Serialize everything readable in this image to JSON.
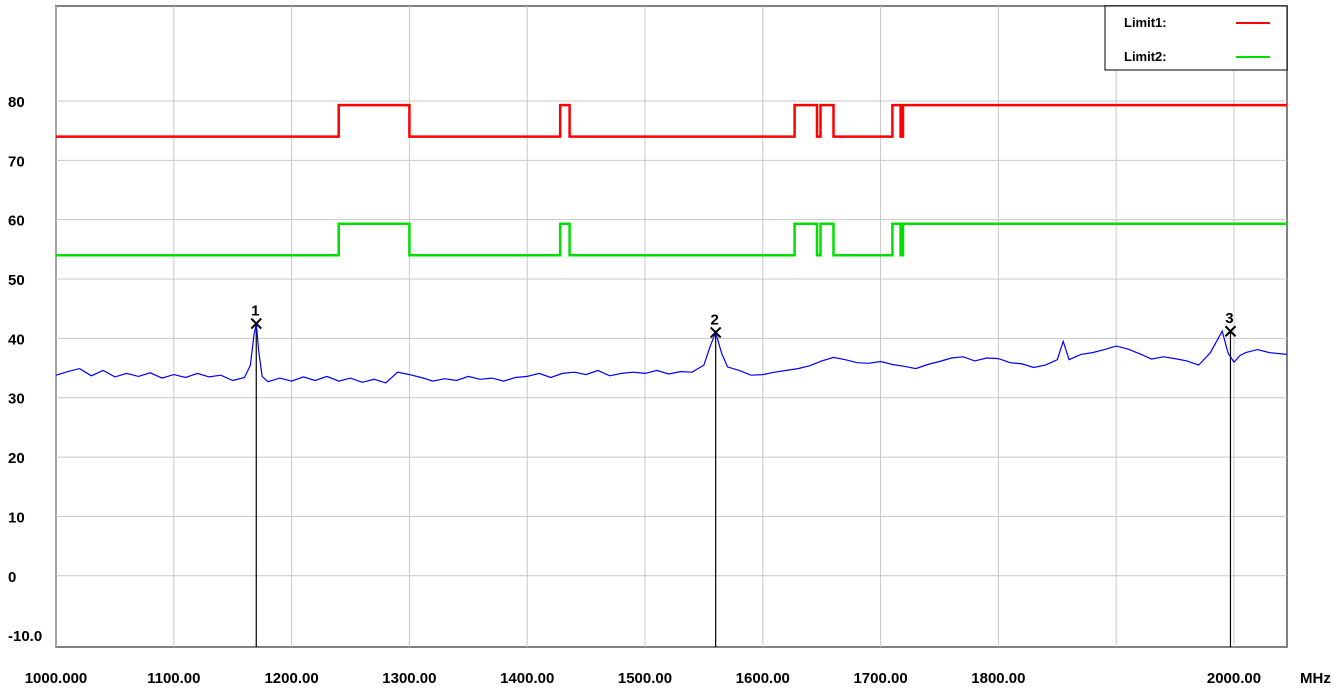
{
  "chart_data": {
    "type": "line",
    "xlabel": "",
    "ylabel": "",
    "x_unit": "MHz",
    "xlim": [
      1000,
      2045
    ],
    "ylim": [
      -12,
      96
    ],
    "grid": true,
    "legend_position": "top-right",
    "x_tick_values": [
      1000,
      1100,
      1200,
      1300,
      1400,
      1500,
      1600,
      1700,
      1800,
      2000
    ],
    "x_tick_labels": [
      "1000.000",
      "1100.00",
      "1200.00",
      "1300.00",
      "1400.00",
      "1500.00",
      "1600.00",
      "1700.00",
      "1800.00",
      "2000.00"
    ],
    "x_grid_values": [
      1000,
      1100,
      1200,
      1300,
      1400,
      1500,
      1600,
      1700,
      1800,
      1900,
      2000
    ],
    "y_tick_values": [
      -10,
      0,
      10,
      20,
      30,
      40,
      50,
      60,
      70,
      80
    ],
    "y_tick_labels": [
      "-10.0",
      "0",
      "10",
      "20",
      "30",
      "40",
      "50",
      "60",
      "70",
      "80"
    ],
    "y_grid_values": [
      0,
      10,
      20,
      30,
      40,
      50,
      60,
      70,
      80
    ],
    "series": [
      {
        "name": "Limit1:",
        "color": "#ff0000",
        "style": "step",
        "x": [
          1000,
          1240,
          1240,
          1300,
          1300,
          1428,
          1428,
          1436,
          1436,
          1627,
          1627,
          1646,
          1646,
          1649,
          1649,
          1660,
          1660,
          1710,
          1710,
          1717,
          1717,
          1719,
          1719,
          1722,
          1722,
          2045
        ],
        "y": [
          74,
          74,
          79.3,
          79.3,
          74,
          74,
          79.3,
          79.3,
          74,
          74,
          79.3,
          79.3,
          74,
          74,
          79.3,
          79.3,
          74,
          74,
          79.3,
          79.3,
          74,
          74,
          79.3,
          79.3,
          79.3,
          79.3
        ]
      },
      {
        "name": "Limit2:",
        "color": "#00e000",
        "style": "step",
        "x": [
          1000,
          1240,
          1240,
          1300,
          1300,
          1428,
          1428,
          1436,
          1436,
          1627,
          1627,
          1646,
          1646,
          1649,
          1649,
          1660,
          1660,
          1710,
          1710,
          1717,
          1717,
          1719,
          1719,
          1722,
          1722,
          2045
        ],
        "y": [
          54,
          54,
          59.3,
          59.3,
          54,
          54,
          59.3,
          59.3,
          54,
          54,
          59.3,
          59.3,
          54,
          54,
          59.3,
          59.3,
          54,
          54,
          59.3,
          59.3,
          54,
          54,
          59.3,
          59.3,
          59.3,
          59.3
        ]
      },
      {
        "name": "",
        "color": "#0000ff",
        "style": "line",
        "x": [
          1000,
          1010,
          1020,
          1030,
          1040,
          1050,
          1060,
          1070,
          1080,
          1090,
          1100,
          1110,
          1120,
          1130,
          1140,
          1150,
          1160,
          1165,
          1168,
          1170,
          1172,
          1175,
          1180,
          1190,
          1200,
          1210,
          1220,
          1230,
          1240,
          1250,
          1260,
          1270,
          1280,
          1290,
          1300,
          1310,
          1320,
          1330,
          1340,
          1350,
          1360,
          1370,
          1380,
          1390,
          1400,
          1410,
          1420,
          1430,
          1440,
          1450,
          1460,
          1470,
          1480,
          1490,
          1500,
          1510,
          1520,
          1530,
          1540,
          1550,
          1555,
          1560,
          1565,
          1570,
          1580,
          1590,
          1600,
          1610,
          1620,
          1630,
          1640,
          1650,
          1660,
          1670,
          1680,
          1690,
          1700,
          1710,
          1720,
          1730,
          1740,
          1750,
          1760,
          1770,
          1780,
          1790,
          1800,
          1810,
          1820,
          1830,
          1840,
          1850,
          1855,
          1860,
          1870,
          1880,
          1890,
          1900,
          1910,
          1920,
          1930,
          1940,
          1950,
          1960,
          1970,
          1980,
          1990,
          1995,
          2000,
          2005,
          2010,
          2020,
          2030,
          2045
        ],
        "y": [
          33.8,
          34.4,
          34.9,
          33.7,
          34.6,
          33.5,
          34.1,
          33.6,
          34.2,
          33.3,
          33.9,
          33.4,
          34.1,
          33.5,
          33.8,
          32.9,
          33.4,
          35.5,
          40.5,
          42.5,
          38,
          33.6,
          32.7,
          33.3,
          32.8,
          33.5,
          32.9,
          33.6,
          32.8,
          33.3,
          32.6,
          33.1,
          32.5,
          34.3,
          33.9,
          33.4,
          32.8,
          33.2,
          32.9,
          33.6,
          33.1,
          33.3,
          32.8,
          33.4,
          33.6,
          34.1,
          33.4,
          34.1,
          34.3,
          33.9,
          34.6,
          33.7,
          34.1,
          34.3,
          34.1,
          34.6,
          34.0,
          34.4,
          34.3,
          35.5,
          38.5,
          41,
          37.5,
          35.2,
          34.6,
          33.8,
          33.9,
          34.3,
          34.6,
          34.9,
          35.4,
          36.2,
          36.8,
          36.4,
          35.9,
          35.8,
          36.1,
          35.6,
          35.3,
          34.9,
          35.6,
          36.1,
          36.7,
          36.9,
          36.2,
          36.7,
          36.6,
          35.9,
          35.7,
          35.1,
          35.5,
          36.4,
          39.5,
          36.4,
          37.3,
          37.6,
          38.1,
          38.7,
          38.2,
          37.4,
          36.5,
          36.9,
          36.6,
          36.2,
          35.5,
          37.6,
          41.2,
          37.5,
          36,
          37.1,
          37.6,
          38.1,
          37.6,
          37.3
        ]
      }
    ],
    "markers": [
      {
        "label": "1",
        "x": 1170,
        "y": 42.5
      },
      {
        "label": "2",
        "x": 1560,
        "y": 41
      },
      {
        "label": "3",
        "x": 1997,
        "y": 41.2
      }
    ]
  }
}
